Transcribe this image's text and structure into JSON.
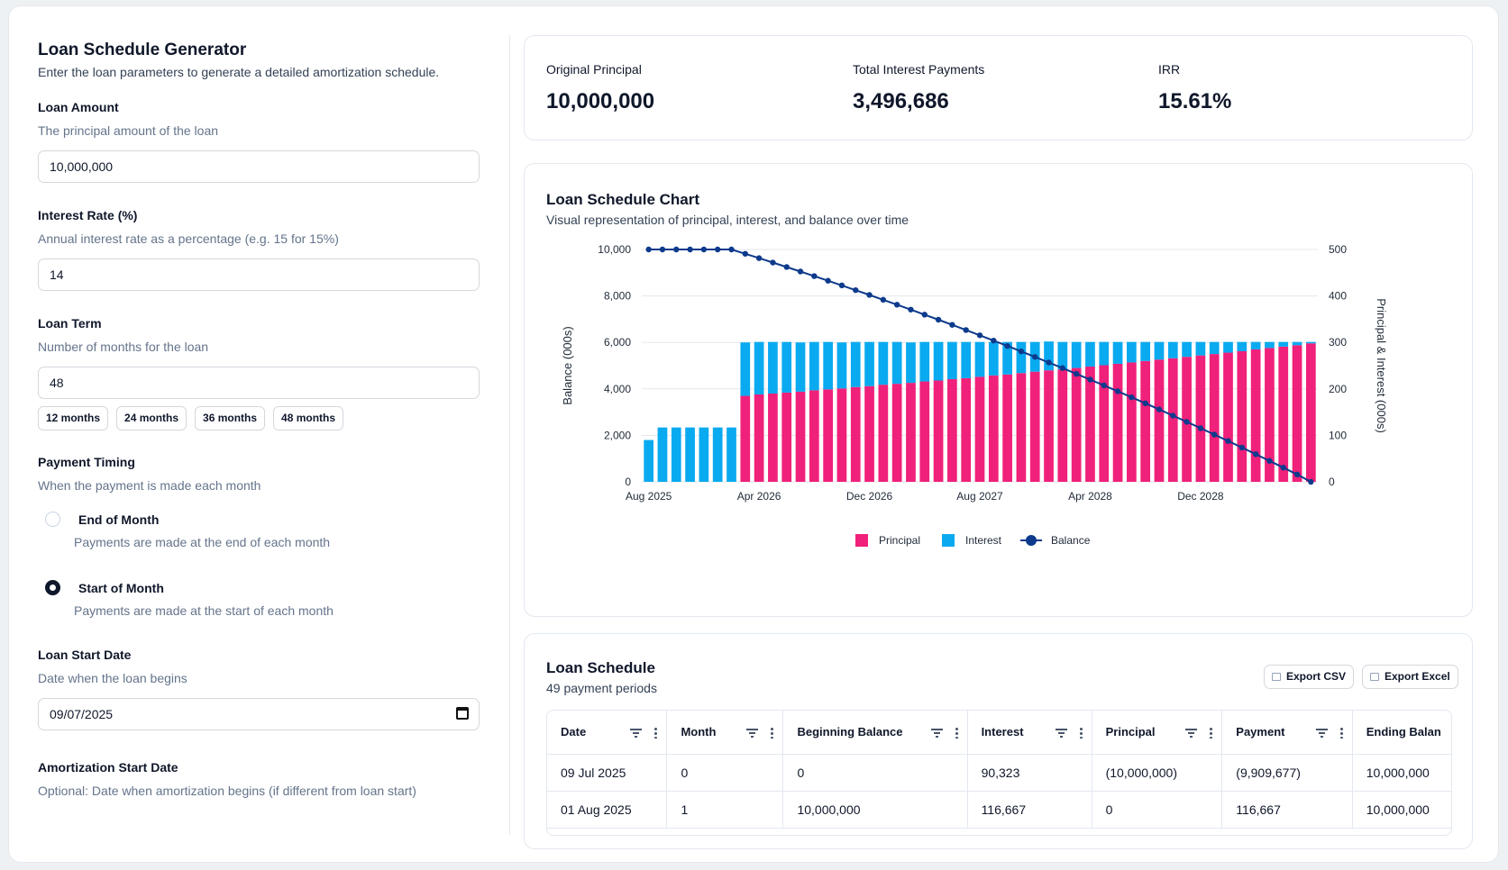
{
  "form": {
    "title": "Loan Schedule Generator",
    "subtitle": "Enter the loan parameters to generate a detailed amortization schedule.",
    "loan_amount": {
      "label": "Loan Amount",
      "hint": "The principal amount of the loan",
      "value": "10,000,000"
    },
    "interest_rate": {
      "label": "Interest Rate (%)",
      "hint": "Annual interest rate as a percentage (e.g. 15 for 15%)",
      "value": "14"
    },
    "loan_term": {
      "label": "Loan Term",
      "hint": "Number of months for the loan",
      "value": "48",
      "presets": [
        "12 months",
        "24 months",
        "36 months",
        "48 months"
      ]
    },
    "payment_timing": {
      "label": "Payment Timing",
      "hint": "When the payment is made each month",
      "options": [
        {
          "label": "End of Month",
          "desc": "Payments are made at the end of each month",
          "selected": false
        },
        {
          "label": "Start of Month",
          "desc": "Payments are made at the start of each month",
          "selected": true
        }
      ]
    },
    "start_date": {
      "label": "Loan Start Date",
      "hint": "Date when the loan begins",
      "value": "09/07/2025"
    },
    "amort_start": {
      "label": "Amortization Start Date",
      "hint": "Optional: Date when amortization begins (if different from loan start)"
    }
  },
  "stats": [
    {
      "label": "Original Principal",
      "value": "10,000,000"
    },
    {
      "label": "Total Interest Payments",
      "value": "3,496,686"
    },
    {
      "label": "IRR",
      "value": "15.61%"
    }
  ],
  "chart_card": {
    "title": "Loan Schedule Chart",
    "subtitle": "Visual representation of principal, interest, and balance over time"
  },
  "chart_data": {
    "type": "bar",
    "stacked": true,
    "x_tick_labels": [
      "Aug 2025",
      "Apr 2026",
      "Dec 2026",
      "Aug 2027",
      "Apr 2028",
      "Dec 2028"
    ],
    "ylabel": "Balance (000s)",
    "ylabel_right": "Principal & Interest (000s)",
    "ylim": [
      0,
      10000
    ],
    "ylim_right": [
      0,
      500
    ],
    "yticks": [
      "0",
      "2,000",
      "4,000",
      "6,000",
      "8,000",
      "10,000"
    ],
    "yticks_right": [
      "0",
      "100",
      "200",
      "300",
      "400",
      "500"
    ],
    "legend": [
      "Principal",
      "Interest",
      "Balance"
    ],
    "legend_position": "bottom",
    "colors": {
      "principal": "#f0217a",
      "interest": "#0aaaf0",
      "balance": "#0d3a8c"
    },
    "periods": 49,
    "series": [
      {
        "name": "Principal",
        "axis": "right",
        "values": [
          0,
          0,
          0,
          0,
          0,
          0,
          0,
          185,
          188,
          190,
          192,
          194,
          197,
          199,
          201,
          204,
          206,
          209,
          211,
          213,
          216,
          218,
          221,
          223,
          226,
          229,
          231,
          234,
          237,
          240,
          242,
          245,
          248,
          251,
          254,
          257,
          260,
          263,
          266,
          269,
          272,
          275,
          278,
          281,
          285,
          288,
          291,
          294,
          298
        ]
      },
      {
        "name": "Interest",
        "axis": "right",
        "values": [
          90,
          117,
          117,
          117,
          117,
          117,
          117,
          115,
          113,
          111,
          109,
          106,
          104,
          102,
          99,
          97,
          95,
          92,
          90,
          87,
          85,
          83,
          80,
          78,
          75,
          72,
          70,
          67,
          64,
          62,
          59,
          56,
          53,
          50,
          47,
          44,
          41,
          38,
          35,
          32,
          29,
          26,
          23,
          20,
          16,
          13,
          10,
          7,
          3
        ]
      },
      {
        "name": "Balance",
        "axis": "left",
        "type": "line",
        "values": [
          10000,
          10000,
          10000,
          10000,
          10000,
          10000,
          10000,
          9815,
          9627,
          9437,
          9245,
          9051,
          8854,
          8655,
          8454,
          8250,
          8044,
          7835,
          7624,
          7411,
          7195,
          6977,
          6756,
          6533,
          6307,
          6078,
          5847,
          5613,
          5376,
          5136,
          4894,
          4649,
          4401,
          4150,
          3896,
          3639,
          3379,
          3116,
          2850,
          2581,
          2309,
          2034,
          1756,
          1475,
          1190,
          902,
          611,
          317,
          0
        ]
      }
    ]
  },
  "schedule": {
    "title": "Loan Schedule",
    "subtitle": "49 payment periods",
    "export_csv": "Export CSV",
    "export_excel": "Export Excel",
    "columns": [
      "Date",
      "Month",
      "Beginning Balance",
      "Interest",
      "Principal",
      "Payment",
      "Ending Balan"
    ],
    "rows": [
      [
        "09 Jul 2025",
        "0",
        "0",
        "90,323",
        "(10,000,000)",
        "(9,909,677)",
        "10,000,000"
      ],
      [
        "01 Aug 2025",
        "1",
        "10,000,000",
        "116,667",
        "0",
        "116,667",
        "10,000,000"
      ]
    ]
  }
}
